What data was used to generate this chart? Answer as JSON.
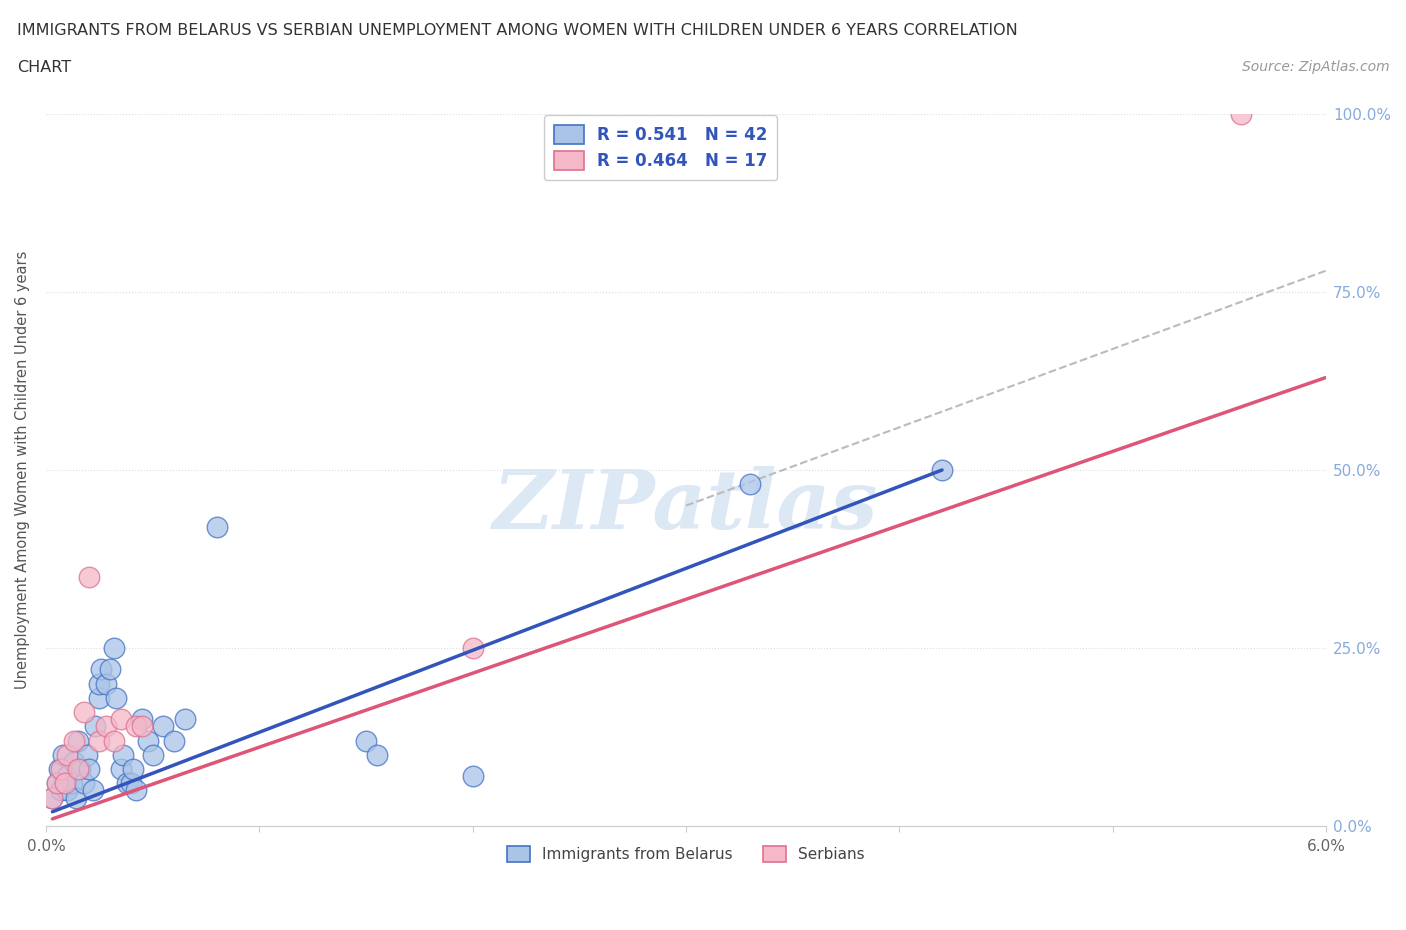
{
  "title_line1": "IMMIGRANTS FROM BELARUS VS SERBIAN UNEMPLOYMENT AMONG WOMEN WITH CHILDREN UNDER 6 YEARS CORRELATION",
  "title_line2": "CHART",
  "source": "Source: ZipAtlas.com",
  "ylabel": "Unemployment Among Women with Children Under 6 years",
  "xlim": [
    0,
    0.06
  ],
  "ylim": [
    0,
    1.0
  ],
  "ytick_labels": [
    "0.0%",
    "25.0%",
    "50.0%",
    "75.0%",
    "100.0%"
  ],
  "ytick_values": [
    0,
    0.25,
    0.5,
    0.75,
    1.0
  ],
  "grid_color": "#dddddd",
  "background_color": "#ffffff",
  "watermark_text": "ZIPatlas",
  "legend_R_belarus": "0.541",
  "legend_N_belarus": "42",
  "legend_R_serbian": "0.464",
  "legend_N_serbian": "17",
  "belarus_fill_color": "#aac4e8",
  "serbian_fill_color": "#f4b8c8",
  "belarus_edge_color": "#4472c4",
  "serbian_edge_color": "#e07090",
  "belarus_line_color": "#3355bb",
  "serbian_line_color": "#dd5577",
  "dashed_line_color": "#bbbbbb",
  "right_axis_color": "#88aadd",
  "belarus_scatter": [
    [
      0.0003,
      0.04
    ],
    [
      0.0005,
      0.06
    ],
    [
      0.0006,
      0.08
    ],
    [
      0.0007,
      0.05
    ],
    [
      0.0008,
      0.1
    ],
    [
      0.001,
      0.07
    ],
    [
      0.001,
      0.05
    ],
    [
      0.0012,
      0.06
    ],
    [
      0.0013,
      0.09
    ],
    [
      0.0014,
      0.04
    ],
    [
      0.0015,
      0.12
    ],
    [
      0.0016,
      0.08
    ],
    [
      0.0018,
      0.06
    ],
    [
      0.0019,
      0.1
    ],
    [
      0.002,
      0.08
    ],
    [
      0.0022,
      0.05
    ],
    [
      0.0023,
      0.14
    ],
    [
      0.0025,
      0.18
    ],
    [
      0.0025,
      0.2
    ],
    [
      0.0026,
      0.22
    ],
    [
      0.0028,
      0.2
    ],
    [
      0.003,
      0.22
    ],
    [
      0.0032,
      0.25
    ],
    [
      0.0033,
      0.18
    ],
    [
      0.0035,
      0.08
    ],
    [
      0.0036,
      0.1
    ],
    [
      0.0038,
      0.06
    ],
    [
      0.004,
      0.06
    ],
    [
      0.0041,
      0.08
    ],
    [
      0.0042,
      0.05
    ],
    [
      0.0045,
      0.15
    ],
    [
      0.0048,
      0.12
    ],
    [
      0.005,
      0.1
    ],
    [
      0.0055,
      0.14
    ],
    [
      0.006,
      0.12
    ],
    [
      0.0065,
      0.15
    ],
    [
      0.008,
      0.42
    ],
    [
      0.015,
      0.12
    ],
    [
      0.0155,
      0.1
    ],
    [
      0.02,
      0.07
    ],
    [
      0.033,
      0.48
    ],
    [
      0.042,
      0.5
    ]
  ],
  "serbian_scatter": [
    [
      0.0003,
      0.04
    ],
    [
      0.0005,
      0.06
    ],
    [
      0.0007,
      0.08
    ],
    [
      0.0009,
      0.06
    ],
    [
      0.001,
      0.1
    ],
    [
      0.0013,
      0.12
    ],
    [
      0.0015,
      0.08
    ],
    [
      0.0018,
      0.16
    ],
    [
      0.002,
      0.35
    ],
    [
      0.0025,
      0.12
    ],
    [
      0.0028,
      0.14
    ],
    [
      0.0032,
      0.12
    ],
    [
      0.0035,
      0.15
    ],
    [
      0.0042,
      0.14
    ],
    [
      0.0045,
      0.14
    ],
    [
      0.02,
      0.25
    ],
    [
      0.056,
      1.0
    ]
  ],
  "belarus_trend_x": [
    0.0003,
    0.042
  ],
  "belarus_trend_y": [
    0.02,
    0.5
  ],
  "serbian_trend_x": [
    0.0003,
    0.06
  ],
  "serbian_trend_y": [
    0.01,
    0.63
  ],
  "dashed_trend_x": [
    0.03,
    0.06
  ],
  "dashed_trend_y": [
    0.45,
    0.78
  ]
}
